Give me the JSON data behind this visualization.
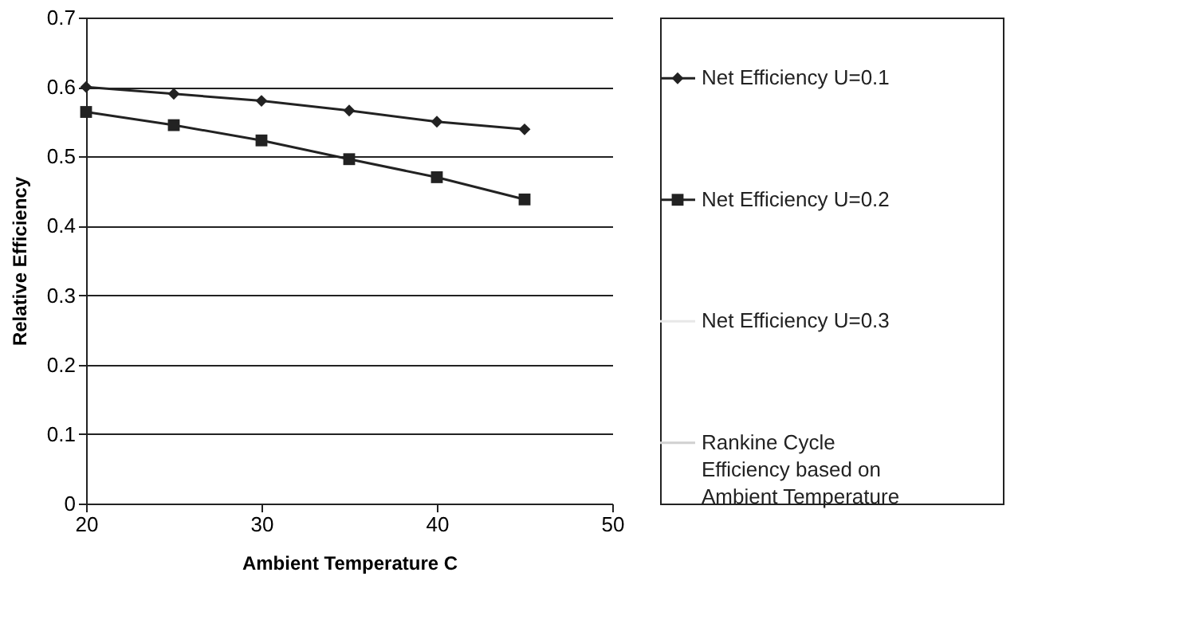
{
  "chart_data": {
    "type": "line",
    "xlabel": "Ambient Temperature C",
    "ylabel": "Relative Efficiency",
    "x": [
      20,
      25,
      30,
      35,
      40,
      45
    ],
    "xlim": [
      20,
      50
    ],
    "xticks": [
      20,
      30,
      40,
      50
    ],
    "ylim": [
      0,
      0.7
    ],
    "yticks": [
      0,
      0.1,
      0.2,
      0.3,
      0.4,
      0.5,
      0.6,
      0.7
    ],
    "grid": "y",
    "legend": "right",
    "series": [
      {
        "name": "Net Efficiency U=0.1",
        "color": "#222222",
        "marker": "diamond",
        "values": [
          0.6,
          0.59,
          0.58,
          0.566,
          0.55,
          0.539
        ]
      },
      {
        "name": "Net Efficiency U=0.2",
        "color": "#222222",
        "marker": "square",
        "values": [
          0.564,
          0.545,
          0.523,
          0.496,
          0.47,
          0.438
        ]
      },
      {
        "name": "Net Efficiency U=0.3",
        "color": "#e8e8e8",
        "marker": "none",
        "values": [
          null,
          null,
          null,
          null,
          null,
          null
        ]
      },
      {
        "name": "Rankine Cycle Efficiency based on Ambient Temperature",
        "color": "#d0d0d0",
        "marker": "none",
        "values": [
          null,
          null,
          null,
          null,
          null,
          null
        ]
      }
    ]
  }
}
